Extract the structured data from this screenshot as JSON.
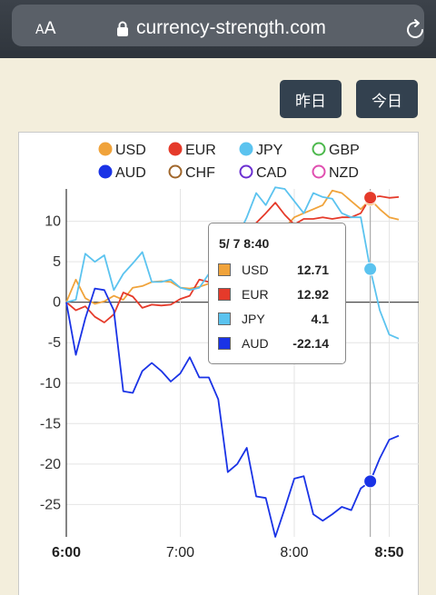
{
  "browser": {
    "text_size_small": "A",
    "text_size_large": "A",
    "url": "currency-strength.com"
  },
  "buttons": {
    "yesterday": "昨日",
    "today": "今日"
  },
  "tooltip": {
    "title": "5/ 7 8:40",
    "rows": [
      {
        "name": "USD",
        "value": "12.71",
        "color": "#f0a33b"
      },
      {
        "name": "EUR",
        "value": "12.92",
        "color": "#e53a2a"
      },
      {
        "name": "JPY",
        "value": "4.1",
        "color": "#5bc3ef"
      },
      {
        "name": "AUD",
        "value": "-22.14",
        "color": "#1a33e6"
      }
    ]
  },
  "chart_data": {
    "type": "line",
    "legend": [
      {
        "name": "USD",
        "color": "#f0a33b",
        "filled": true
      },
      {
        "name": "EUR",
        "color": "#e53a2a",
        "filled": true
      },
      {
        "name": "JPY",
        "color": "#5bc3ef",
        "filled": true
      },
      {
        "name": "GBP",
        "color": "#4cb84c",
        "filled": false
      },
      {
        "name": "AUD",
        "color": "#1a33e6",
        "filled": true
      },
      {
        "name": "CHF",
        "color": "#a0662a",
        "filled": false
      },
      {
        "name": "CAD",
        "color": "#6b2fd1",
        "filled": false
      },
      {
        "name": "NZD",
        "color": "#e04fb0",
        "filled": false
      }
    ],
    "x_ticks": [
      "6:00",
      "7:00",
      "8:00",
      "8:50"
    ],
    "x_tick_minutes": [
      0,
      60,
      120,
      170
    ],
    "x_range_minutes": [
      0,
      175
    ],
    "y_ticks": [
      10,
      5,
      0,
      -5,
      -10,
      -15,
      -20,
      -25
    ],
    "ylim": [
      -29,
      14
    ],
    "grid": true,
    "highlight_minute": 160,
    "series": [
      {
        "name": "USD",
        "color": "#f0a33b",
        "x": [
          0,
          5,
          10,
          15,
          20,
          25,
          30,
          35,
          40,
          45,
          50,
          55,
          60,
          65,
          70,
          75,
          80,
          85,
          90,
          95,
          100,
          105,
          110,
          115,
          120,
          125,
          130,
          135,
          140,
          145,
          150,
          155,
          160,
          165,
          170,
          175
        ],
        "y": [
          0,
          2.8,
          0.5,
          -0.2,
          0.1,
          0.8,
          0.3,
          1.8,
          2.0,
          2.5,
          2.6,
          2.5,
          1.8,
          1.7,
          1.9,
          2.3,
          3.5,
          5.5,
          6.5,
          8.5,
          8.2,
          8.8,
          8.9,
          9.2,
          10.5,
          11,
          11.5,
          12,
          13.8,
          13.5,
          12.5,
          11.5,
          12.71,
          11.5,
          10.5,
          10.2
        ]
      },
      {
        "name": "EUR",
        "color": "#e53a2a",
        "x": [
          0,
          5,
          10,
          15,
          20,
          25,
          30,
          35,
          40,
          45,
          50,
          55,
          60,
          65,
          70,
          75,
          80,
          85,
          90,
          95,
          100,
          105,
          110,
          115,
          120,
          125,
          130,
          135,
          140,
          145,
          150,
          155,
          160,
          165,
          170,
          175
        ],
        "y": [
          0,
          -1,
          -0.5,
          -1.8,
          -2.5,
          -1.5,
          1.2,
          0.7,
          -0.7,
          -0.3,
          -0.4,
          -0.3,
          0.4,
          0.8,
          2.8,
          2.5,
          3.5,
          5.0,
          7.2,
          8.5,
          9.8,
          11.0,
          12.3,
          10.8,
          9.6,
          10.3,
          10.3,
          10.5,
          10.3,
          10.5,
          10.5,
          11.0,
          12.92,
          13.1,
          12.9,
          13.0
        ]
      },
      {
        "name": "JPY",
        "color": "#5bc3ef",
        "x": [
          0,
          5,
          10,
          15,
          20,
          25,
          30,
          35,
          40,
          45,
          50,
          55,
          60,
          65,
          70,
          75,
          80,
          85,
          90,
          95,
          100,
          105,
          110,
          115,
          120,
          125,
          130,
          135,
          140,
          145,
          150,
          155,
          160,
          165,
          170,
          175
        ],
        "y": [
          0,
          0.3,
          6.0,
          5.0,
          5.8,
          1.5,
          3.5,
          4.8,
          6.2,
          2.5,
          2.5,
          2.8,
          1.8,
          1.5,
          1.8,
          3.5,
          4.5,
          6.5,
          8.0,
          10.5,
          13.5,
          12.0,
          14.2,
          14.0,
          12.5,
          11.0,
          13.5,
          13.0,
          12.8,
          11.0,
          10.5,
          10.5,
          4.1,
          -1.0,
          -4.0,
          -4.5
        ]
      },
      {
        "name": "AUD",
        "color": "#1a33e6",
        "x": [
          0,
          5,
          10,
          15,
          20,
          25,
          30,
          35,
          40,
          45,
          50,
          55,
          60,
          65,
          70,
          75,
          80,
          85,
          90,
          95,
          100,
          105,
          110,
          115,
          120,
          125,
          130,
          135,
          140,
          145,
          150,
          155,
          160,
          165,
          170,
          175
        ],
        "y": [
          0,
          -6.5,
          -2.0,
          1.7,
          1.5,
          -1.0,
          -11.0,
          -11.2,
          -8.5,
          -7.5,
          -8.5,
          -9.8,
          -8.8,
          -6.8,
          -9.3,
          -9.3,
          -12.0,
          -21.0,
          -20.0,
          -18.0,
          -24.0,
          -24.2,
          -29.0,
          -25.5,
          -21.8,
          -21.5,
          -26.2,
          -27.0,
          -26.2,
          -25.3,
          -25.7,
          -23.0,
          -22.14,
          -19.3,
          -17.0,
          -16.5
        ]
      }
    ]
  }
}
